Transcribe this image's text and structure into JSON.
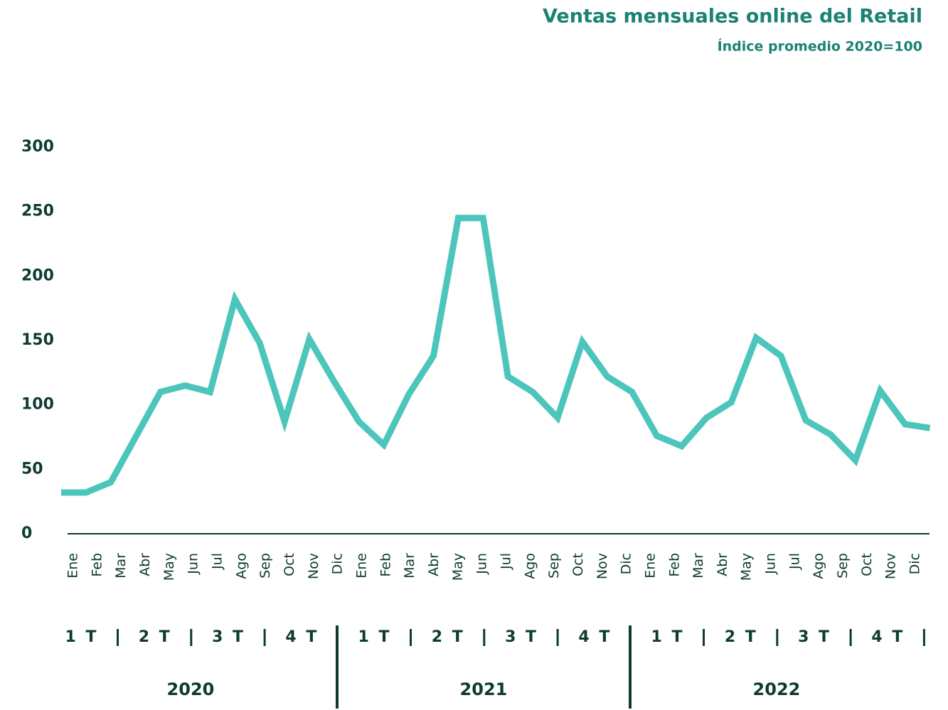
{
  "chart_data": {
    "type": "line",
    "title": "Ventas mensuales online del Retail",
    "subtitle": "Índice promedio 2020=100",
    "categories": [
      "Ene",
      "Feb",
      "Mar",
      "Abr",
      "May",
      "Jun",
      "Jul",
      "Ago",
      "Sep",
      "Oct",
      "Nov",
      "Dic",
      "Ene",
      "Feb",
      "Mar",
      "Abr",
      "May",
      "Jun",
      "Jul",
      "Ago",
      "Sep",
      "Oct",
      "Nov",
      "Dic",
      "Ene",
      "Feb",
      "Mar",
      "Abr",
      "May",
      "Jun",
      "Jul",
      "Ago",
      "Sep",
      "Oct",
      "Nov",
      "Dic"
    ],
    "series": [
      {
        "name": "Ventas",
        "color": "#4cc5bc",
        "values": [
          32,
          32,
          40,
          75,
          110,
          115,
          110,
          182,
          148,
          87,
          151,
          118,
          87,
          69,
          108,
          138,
          245,
          245,
          122,
          110,
          90,
          149,
          122,
          110,
          76,
          68,
          90,
          102,
          152,
          138,
          88,
          77,
          57,
          111,
          85,
          82
        ]
      }
    ],
    "ylim": [
      0,
      300
    ],
    "yticks": [
      0,
      50,
      100,
      150,
      200,
      250,
      300
    ],
    "quarters": [
      "1 T",
      "2 T",
      "3 T",
      "4 T"
    ],
    "years": [
      "2020",
      "2021",
      "2022"
    ]
  }
}
